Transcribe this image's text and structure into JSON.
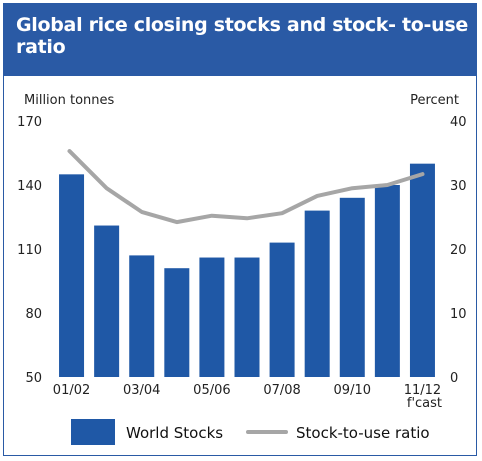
{
  "title": "Global rice closing stocks and stock- to-use ratio",
  "colors": {
    "header": "#2a5aa5",
    "bars": "#1f58a6",
    "line": "#a6a6a6"
  },
  "chart_data": {
    "type": "bar",
    "categories": [
      "01/02",
      "02/03",
      "03/04",
      "04/05",
      "05/06",
      "06/07",
      "07/08",
      "08/09",
      "09/10",
      "10/11",
      "11/12"
    ],
    "tick_labels": [
      "01/02",
      "03/04",
      "05/06",
      "07/08",
      "09/10",
      "11/12"
    ],
    "forecast_note": "f'cast",
    "left_axis": {
      "label": "Million tonnes",
      "ylim": [
        50,
        170
      ],
      "ticks": [
        50,
        80,
        110,
        140,
        170
      ]
    },
    "right_axis": {
      "label": "Percent",
      "ylim": [
        0,
        40
      ],
      "ticks": [
        0,
        10,
        20,
        30,
        40
      ]
    },
    "series": [
      {
        "name": "World Stocks",
        "type": "bar",
        "axis": "left",
        "values": [
          145,
          121,
          107,
          101,
          106,
          106,
          113,
          128,
          134,
          140,
          150
        ]
      },
      {
        "name": "Stock-to-use ratio",
        "type": "line",
        "axis": "right",
        "values": [
          35.3,
          29.5,
          25.8,
          24.2,
          25.2,
          24.8,
          25.6,
          28.3,
          29.5,
          30.0,
          31.7
        ]
      }
    ],
    "grid": false,
    "legend": "bottom"
  }
}
